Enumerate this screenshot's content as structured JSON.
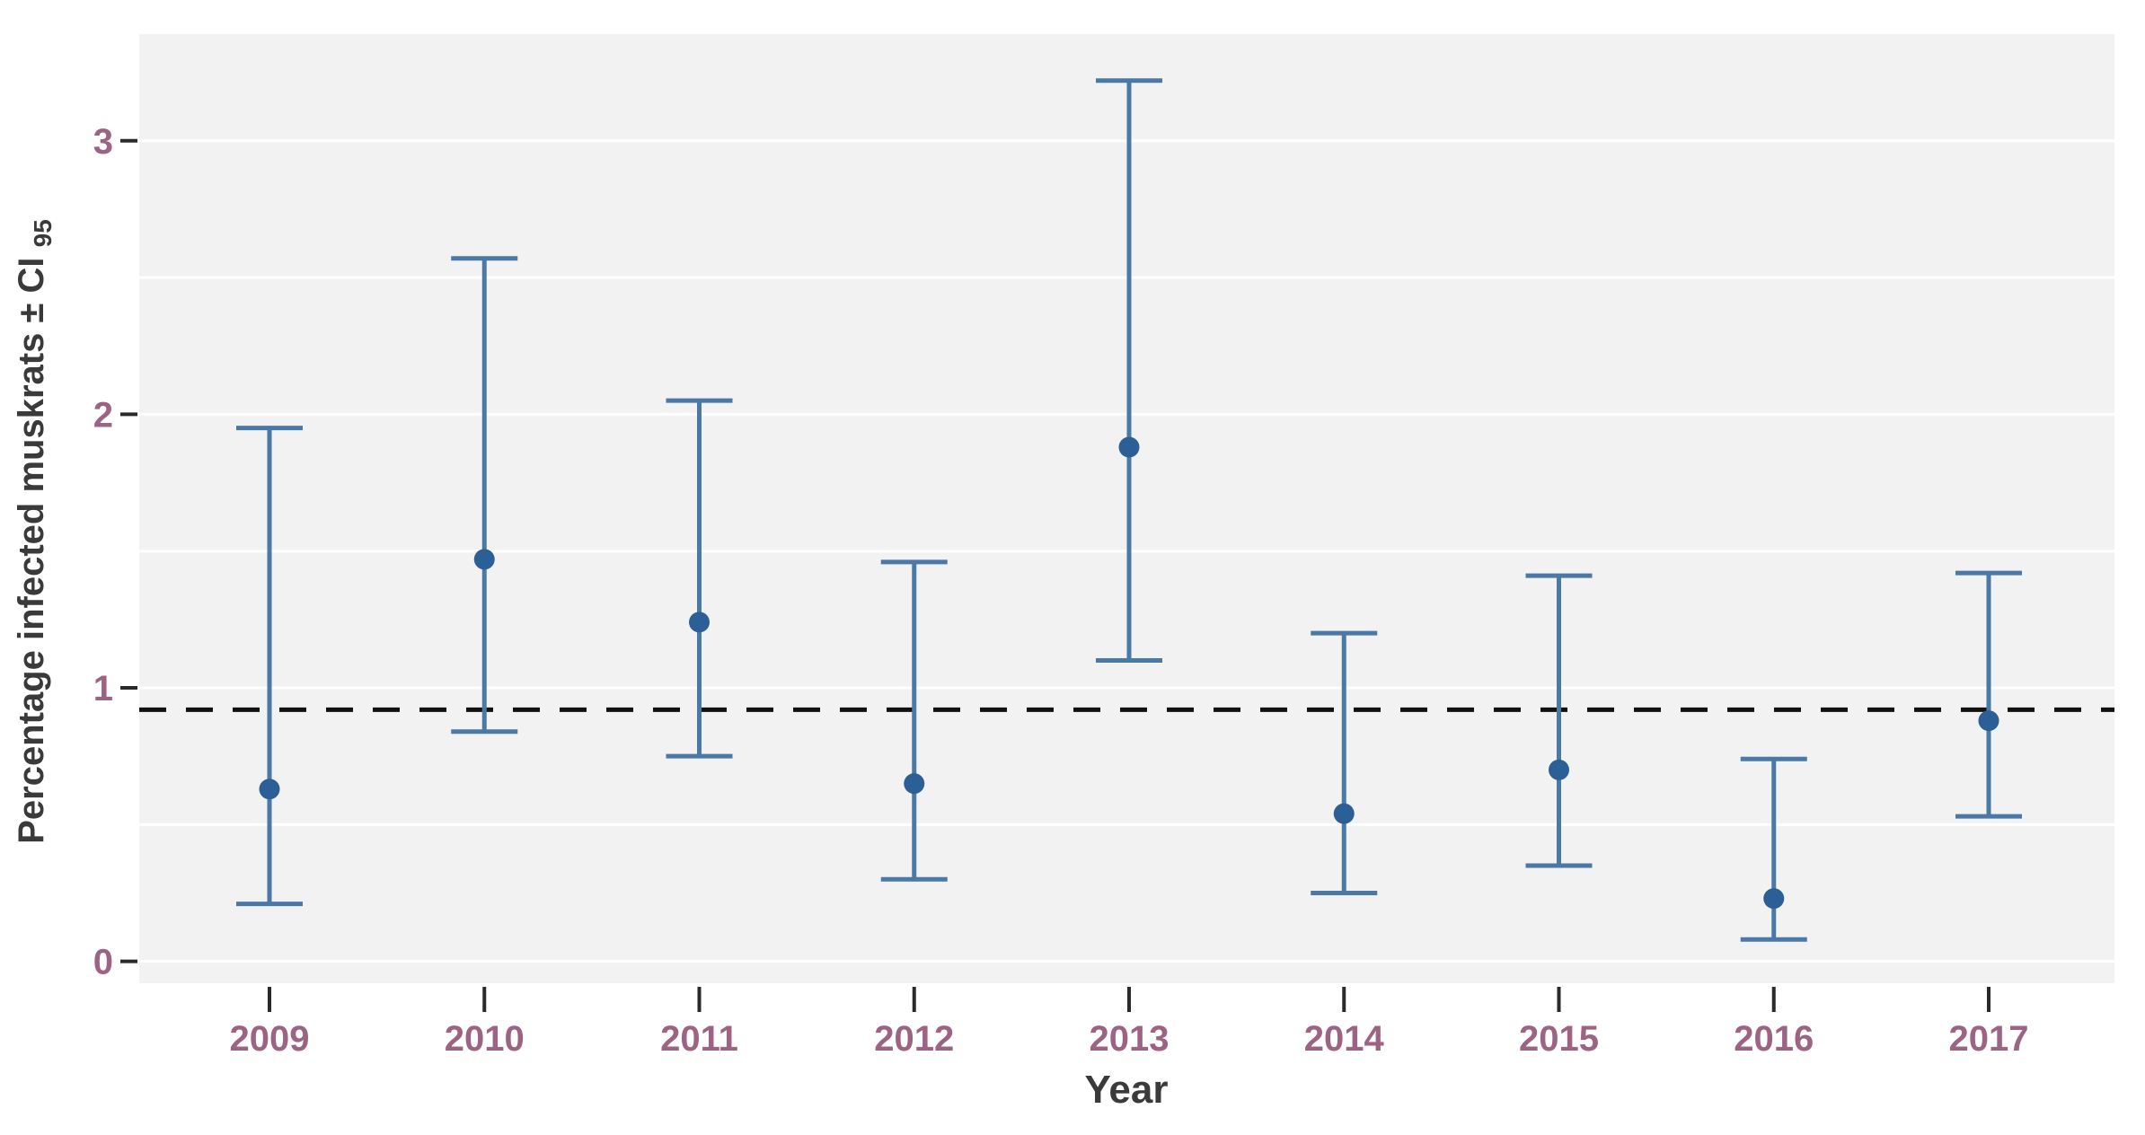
{
  "chart_data": {
    "type": "errorbar",
    "title": "",
    "xlabel": "Year",
    "ylabel_main": "Percentage infected muskrats ± CI",
    "ylabel_sub": "95",
    "categories": [
      "2009",
      "2010",
      "2011",
      "2012",
      "2013",
      "2014",
      "2015",
      "2016",
      "2017"
    ],
    "series": [
      {
        "name": "Percentage infected muskrats",
        "means": [
          0.63,
          1.47,
          1.24,
          0.65,
          1.88,
          0.54,
          0.7,
          0.23,
          0.88
        ],
        "ci_low": [
          0.21,
          0.84,
          0.75,
          0.3,
          1.1,
          0.25,
          0.35,
          0.08,
          0.53
        ],
        "ci_high": [
          1.95,
          2.57,
          2.05,
          1.46,
          3.22,
          1.2,
          1.41,
          0.74,
          1.42
        ]
      }
    ],
    "reference_line_y": 0.92,
    "yticks": [
      0,
      1,
      2,
      3
    ],
    "ylim": [
      -0.08,
      3.39
    ],
    "grid": {
      "shown": true,
      "step": 0.5,
      "color": "#ffffff"
    },
    "legend": "none",
    "colors": {
      "page_background": "#ffffff",
      "panel_background": "#f2f2f2",
      "error_bar": "#4b79a7",
      "marker": "#2d5f97",
      "reference_line": "#111111",
      "tick_label": "#9c6383",
      "axis_title": "#3a3a3a",
      "tick_mark": "#2a2a2a"
    }
  }
}
